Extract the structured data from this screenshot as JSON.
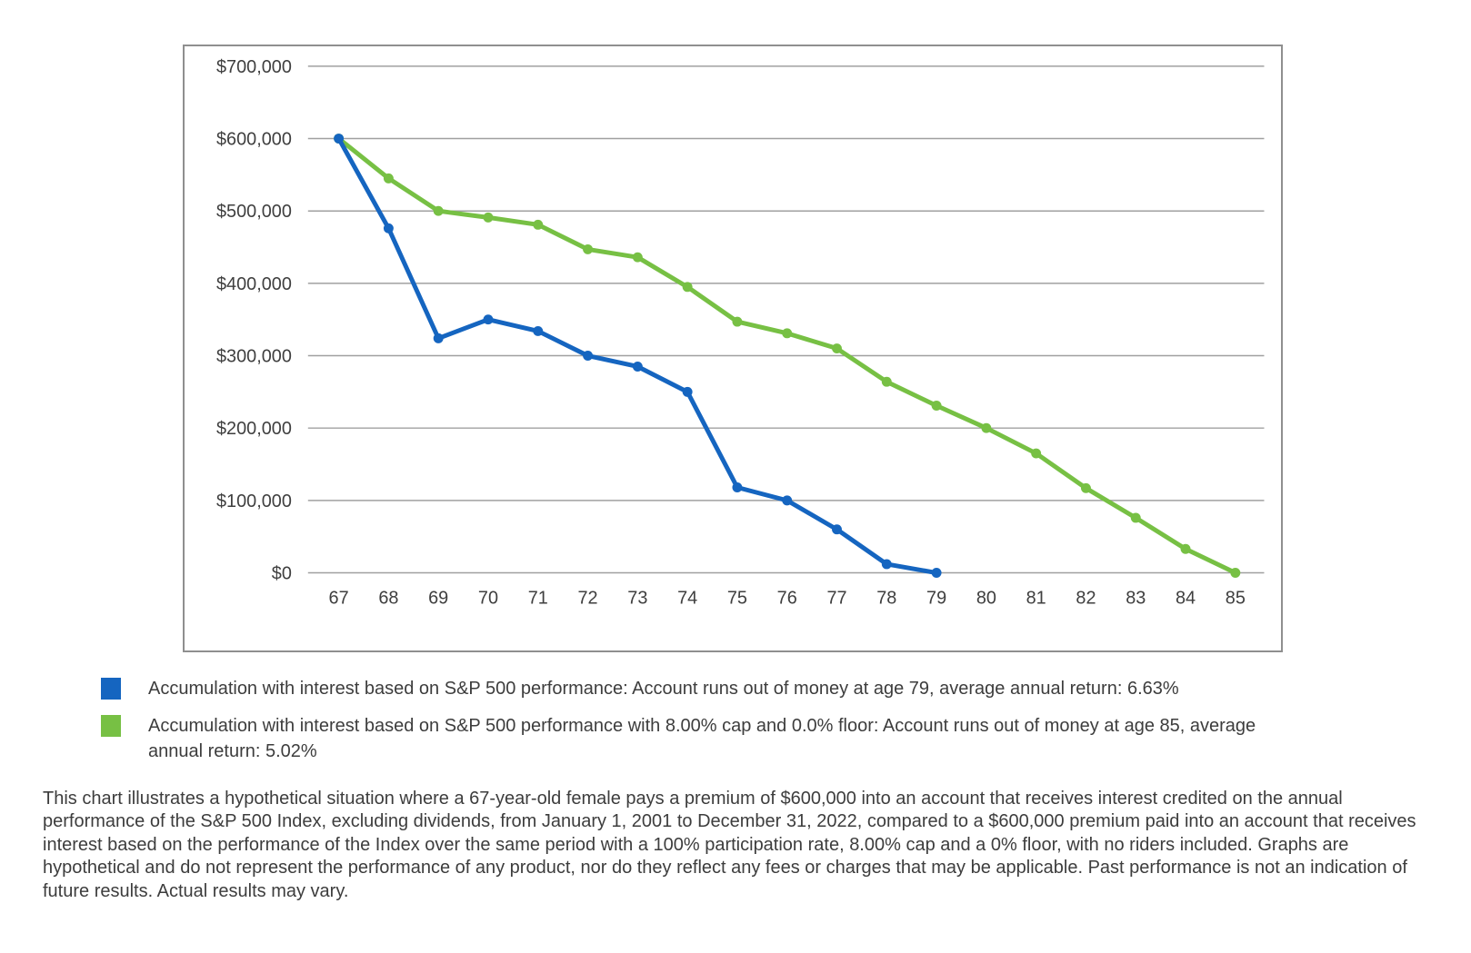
{
  "chart_data": {
    "type": "line",
    "title": "",
    "xlabel": "",
    "ylabel": "",
    "x": [
      67,
      68,
      69,
      70,
      71,
      72,
      73,
      74,
      75,
      76,
      77,
      78,
      79,
      80,
      81,
      82,
      83,
      84,
      85
    ],
    "ylim": [
      0,
      700000
    ],
    "ytick_step": 100000,
    "ytick_labels": [
      "$0",
      "$100,000",
      "$200,000",
      "$300,000",
      "$400,000",
      "$500,000",
      "$600,000",
      "$700,000"
    ],
    "grid": true,
    "grid_color": "#a0a0a0",
    "legend_position": "below",
    "series": [
      {
        "name": "Accumulation with interest based on S&P 500 performance",
        "color": "#1565c0",
        "values": [
          600000,
          476000,
          324000,
          350000,
          334000,
          300000,
          285000,
          250000,
          118000,
          100000,
          60000,
          12000,
          0
        ]
      },
      {
        "name": "Accumulation with interest based on S&P 500 performance with 8.00% cap and 0.0% floor",
        "color": "#77c044",
        "values": [
          600000,
          545000,
          500000,
          491000,
          481000,
          447000,
          436000,
          395000,
          347000,
          331000,
          310000,
          264000,
          231000,
          200000,
          165000,
          117000,
          76000,
          33000,
          0
        ]
      }
    ]
  },
  "legend": {
    "items": [
      {
        "label": "Accumulation with interest based on S&P 500 performance: Account runs out of money at age 79, average annual return: 6.63%",
        "color": "#1565c0"
      },
      {
        "label": "Accumulation with interest based on S&P 500 performance with 8.00% cap and 0.0% floor: Account runs out of money at age 85, average annual return: 5.02%",
        "color": "#77c044"
      }
    ]
  },
  "disclaimer": "This chart illustrates a hypothetical situation where a 67-year-old female pays a premium of $600,000 into an account that receives interest credited on the annual performance of the S&P 500 Index, excluding dividends, from January 1, 2001 to December 31, 2022, compared to a $600,000 premium paid into an account that receives interest based on the performance of the Index over the same period with a 100% participation rate, 8.00% cap and a 0% floor, with no riders included. Graphs are hypothetical and do not represent the performance of any product, nor do they reflect any fees or charges that may be applicable. Past performance is not an indication of future results. Actual results may vary."
}
